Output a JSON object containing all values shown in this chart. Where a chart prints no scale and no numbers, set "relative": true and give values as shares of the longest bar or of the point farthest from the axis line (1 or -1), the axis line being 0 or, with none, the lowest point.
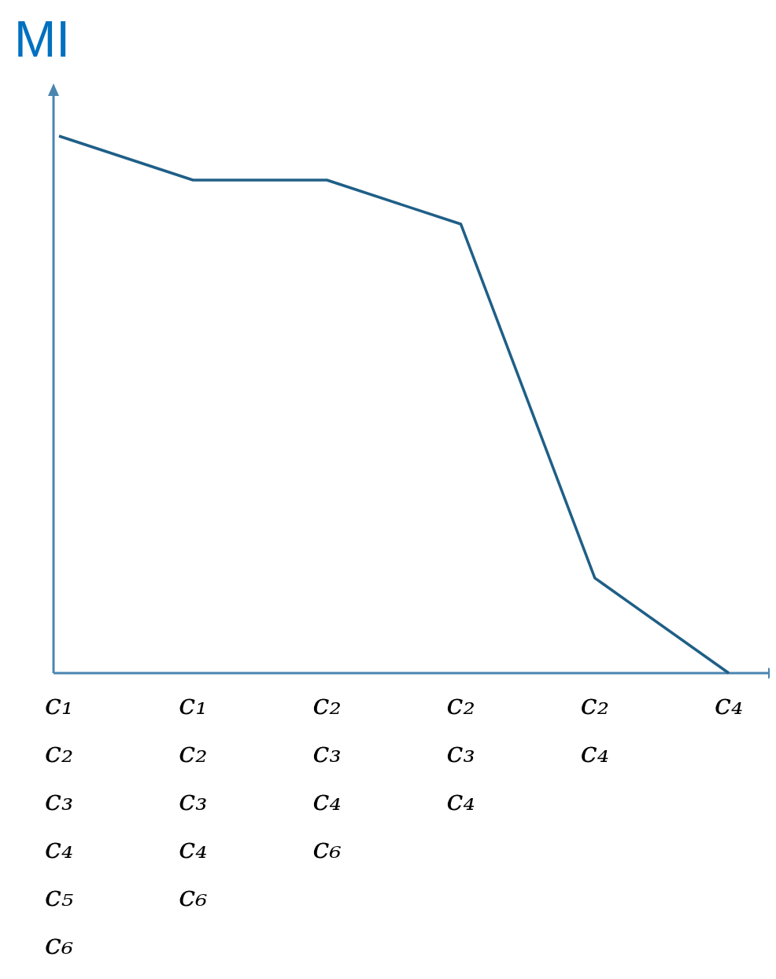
{
  "chart_data": {
    "type": "line",
    "ylabel": "MI",
    "relative": true,
    "marker": "none",
    "line_style": "solid",
    "categories": [
      "c₁\nc₂\nc₃\nc₄\nc₅\nc₆",
      "c₁\nc₂\nc₃\nc₄\nc₆",
      "c₂\nc₃\nc₄\nc₆",
      "c₂\nc₃\nc₄",
      "c₂\nc₄",
      "c₄"
    ],
    "series": [
      {
        "color": "#1f5f87",
        "values": [
          1,
          0.918,
          0.918,
          0.836,
          0.177,
          0
        ]
      }
    ]
  }
}
